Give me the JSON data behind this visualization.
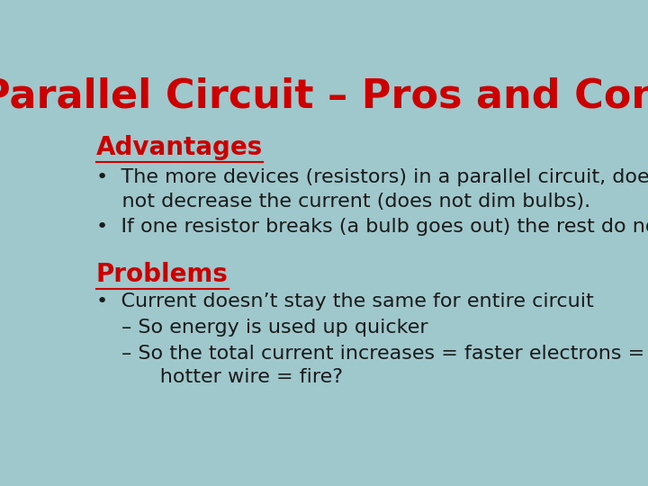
{
  "title": "Parallel Circuit – Pros and Cons",
  "title_color": "#CC0000",
  "title_fontsize": 32,
  "background_color": "#9FC8CC",
  "text_color": "#1A1A1A",
  "heading_color": "#CC0000",
  "advantages_heading": "Advantages",
  "advantages_bullet1": "The more devices (resistors) in a parallel circuit, does\n    not decrease the current (does not dim bulbs).",
  "advantages_bullet2": "If one resistor breaks (a bulb goes out) the rest do not.",
  "problems_heading": "Problems",
  "problems_bullet1": "Current doesn’t stay the same for entire circuit",
  "problems_sub1": "– So energy is used up quicker",
  "problems_sub2": "– So the total current increases = faster electrons =\n      hotter wire = fire?",
  "body_fontsize": 16,
  "heading_fontsize": 20
}
